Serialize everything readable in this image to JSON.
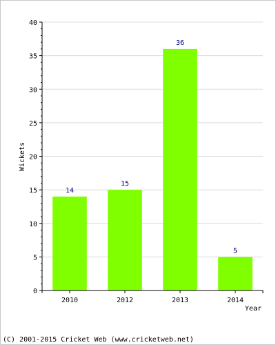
{
  "chart_data": {
    "type": "bar",
    "categories": [
      "2010",
      "2012",
      "2013",
      "2014"
    ],
    "values": [
      14,
      15,
      36,
      5
    ],
    "xlabel": "Year",
    "ylabel": "Wickets",
    "ylim": [
      0,
      40
    ],
    "yticks": [
      0,
      5,
      10,
      15,
      20,
      25,
      30,
      35,
      40
    ],
    "grid": true,
    "bar_color": "#80ff00",
    "data_label_color": "#000080"
  },
  "footer": {
    "text": "(C) 2001-2015 Cricket Web (www.cricketweb.net)"
  }
}
